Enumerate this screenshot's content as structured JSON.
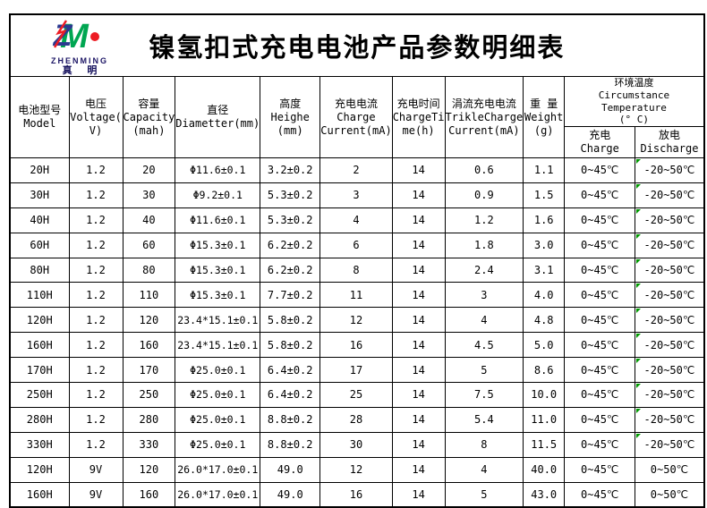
{
  "logo": {
    "monogram": "ZM",
    "name_en": "ZHENMING",
    "name_cn": "真 明"
  },
  "title": "镍氢扣式充电电池产品参数明细表",
  "colors": {
    "logo_blue": "#2b3990",
    "logo_green": "#00a651",
    "logo_red": "#ed1c24",
    "logo_navy": "#1b1464",
    "comment_marker": "#009900",
    "border": "#000000"
  },
  "table": {
    "headers": [
      "电池型号\nModel",
      "电压\nVoltage(\nV)",
      "容量\nCapacity\n(mah)",
      "直径\nDiametter(mm)",
      "高度\nHeighe\n(mm)",
      "充电电流\nCharge\nCurrent(mA)",
      "充电时间\nChargeTi\nme(h)",
      "涓流充电电流\nTrikleCharge\nCurrent(mA)",
      "重 量\nWeight\n(g)"
    ],
    "env_header": {
      "top": "环境温度\nCircumstance Temperature\n(° C)",
      "charge": "充电\nCharge",
      "discharge": "放电\nDischarge"
    },
    "rows": [
      {
        "model": "20H",
        "voltage": "1.2",
        "capacity": "20",
        "diameter": "Φ11.6±0.1",
        "height": "3.2±0.2",
        "charge_current": "2",
        "charge_time": "14",
        "trickle_current": "0.6",
        "weight": "1.1",
        "charge_temp": "0~45℃",
        "discharge_temp": "-20~50℃",
        "comment_marker": true
      },
      {
        "model": "30H",
        "voltage": "1.2",
        "capacity": "30",
        "diameter": "Φ9.2±0.1",
        "height": "5.3±0.2",
        "charge_current": "3",
        "charge_time": "14",
        "trickle_current": "0.9",
        "weight": "1.5",
        "charge_temp": "0~45℃",
        "discharge_temp": "-20~50℃",
        "comment_marker": true
      },
      {
        "model": "40H",
        "voltage": "1.2",
        "capacity": "40",
        "diameter": "Φ11.6±0.1",
        "height": "5.3±0.2",
        "charge_current": "4",
        "charge_time": "14",
        "trickle_current": "1.2",
        "weight": "1.6",
        "charge_temp": "0~45℃",
        "discharge_temp": "-20~50℃",
        "comment_marker": true
      },
      {
        "model": "60H",
        "voltage": "1.2",
        "capacity": "60",
        "diameter": "Φ15.3±0.1",
        "height": "6.2±0.2",
        "charge_current": "6",
        "charge_time": "14",
        "trickle_current": "1.8",
        "weight": "3.0",
        "charge_temp": "0~45℃",
        "discharge_temp": "-20~50℃",
        "comment_marker": true
      },
      {
        "model": "80H",
        "voltage": "1.2",
        "capacity": "80",
        "diameter": "Φ15.3±0.1",
        "height": "6.2±0.2",
        "charge_current": "8",
        "charge_time": "14",
        "trickle_current": "2.4",
        "weight": "3.1",
        "charge_temp": "0~45℃",
        "discharge_temp": "-20~50℃",
        "comment_marker": true
      },
      {
        "model": "110H",
        "voltage": "1.2",
        "capacity": "110",
        "diameter": "Φ15.3±0.1",
        "height": "7.7±0.2",
        "charge_current": "11",
        "charge_time": "14",
        "trickle_current": "3",
        "weight": "4.0",
        "charge_temp": "0~45℃",
        "discharge_temp": "-20~50℃",
        "comment_marker": true
      },
      {
        "model": "120H",
        "voltage": "1.2",
        "capacity": "120",
        "diameter": "23.4*15.1±0.1",
        "height": "5.8±0.2",
        "charge_current": "12",
        "charge_time": "14",
        "trickle_current": "4",
        "weight": "4.8",
        "charge_temp": "0~45℃",
        "discharge_temp": "-20~50℃",
        "comment_marker": true
      },
      {
        "model": "160H",
        "voltage": "1.2",
        "capacity": "160",
        "diameter": "23.4*15.1±0.1",
        "height": "5.8±0.2",
        "charge_current": "16",
        "charge_time": "14",
        "trickle_current": "4.5",
        "weight": "5.0",
        "charge_temp": "0~45℃",
        "discharge_temp": "-20~50℃",
        "comment_marker": true
      },
      {
        "model": "170H",
        "voltage": "1.2",
        "capacity": "170",
        "diameter": "Φ25.0±0.1",
        "height": "6.4±0.2",
        "charge_current": "17",
        "charge_time": "14",
        "trickle_current": "5",
        "weight": "8.6",
        "charge_temp": "0~45℃",
        "discharge_temp": "-20~50℃",
        "comment_marker": true
      },
      {
        "model": "250H",
        "voltage": "1.2",
        "capacity": "250",
        "diameter": "Φ25.0±0.1",
        "height": "6.4±0.2",
        "charge_current": "25",
        "charge_time": "14",
        "trickle_current": "7.5",
        "weight": "10.0",
        "charge_temp": "0~45℃",
        "discharge_temp": "-20~50℃",
        "comment_marker": true
      },
      {
        "model": "280H",
        "voltage": "1.2",
        "capacity": "280",
        "diameter": "Φ25.0±0.1",
        "height": "8.8±0.2",
        "charge_current": "28",
        "charge_time": "14",
        "trickle_current": "5.4",
        "weight": "11.0",
        "charge_temp": "0~45℃",
        "discharge_temp": "-20~50℃",
        "comment_marker": true
      },
      {
        "model": "330H",
        "voltage": "1.2",
        "capacity": "330",
        "diameter": "Φ25.0±0.1",
        "height": "8.8±0.2",
        "charge_current": "30",
        "charge_time": "14",
        "trickle_current": "8",
        "weight": "11.5",
        "charge_temp": "0~45℃",
        "discharge_temp": "-20~50℃",
        "comment_marker": true
      },
      {
        "model": "120H",
        "voltage": "9V",
        "capacity": "120",
        "diameter": "26.0*17.0±0.1",
        "height": "49.0",
        "charge_current": "12",
        "charge_time": "14",
        "trickle_current": "4",
        "weight": "40.0",
        "charge_temp": "0~45℃",
        "discharge_temp": "0~50℃",
        "comment_marker": false
      },
      {
        "model": "160H",
        "voltage": "9V",
        "capacity": "160",
        "diameter": "26.0*17.0±0.1",
        "height": "49.0",
        "charge_current": "16",
        "charge_time": "14",
        "trickle_current": "5",
        "weight": "43.0",
        "charge_temp": "0~45℃",
        "discharge_temp": "0~50℃",
        "comment_marker": false
      }
    ]
  }
}
